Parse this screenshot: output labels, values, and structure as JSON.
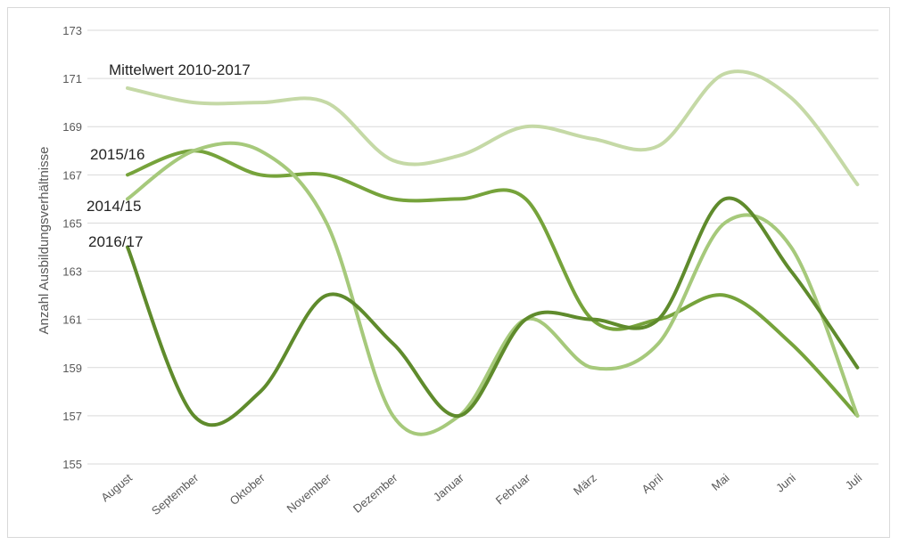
{
  "chart_data": {
    "type": "line",
    "title": "",
    "xlabel": "",
    "ylabel": "Anzahl Ausbildungsverhältnisse",
    "ylim": [
      155,
      173
    ],
    "yticks": [
      155,
      157,
      159,
      161,
      163,
      165,
      167,
      169,
      171,
      173
    ],
    "grid": true,
    "legend": "inline labels",
    "smooth": true,
    "categories": [
      "August",
      "September",
      "Oktober",
      "November",
      "Dezember",
      "Januar",
      "Februar",
      "März",
      "April",
      "Mai",
      "Juni",
      "Juli"
    ],
    "series": [
      {
        "name": "Mittelwert 2010-2017",
        "color": "#c5d9a6",
        "values": [
          170.6,
          170.0,
          170.0,
          170.0,
          167.6,
          167.8,
          169.0,
          168.5,
          168.2,
          171.2,
          170.2,
          166.6
        ]
      },
      {
        "name": "2015/16",
        "color": "#76a33b",
        "values": [
          167,
          168,
          167,
          167,
          166,
          166,
          166,
          161,
          161,
          162,
          160,
          157
        ]
      },
      {
        "name": "2014/15",
        "color": "#a6c97b",
        "values": [
          166,
          168,
          168,
          165,
          157,
          157,
          161,
          159,
          160,
          165,
          164,
          157
        ]
      },
      {
        "name": "2016/17",
        "color": "#5f8b2c",
        "values": [
          164,
          157,
          158,
          162,
          160,
          157,
          161,
          161,
          161,
          166,
          163,
          159
        ]
      }
    ]
  }
}
